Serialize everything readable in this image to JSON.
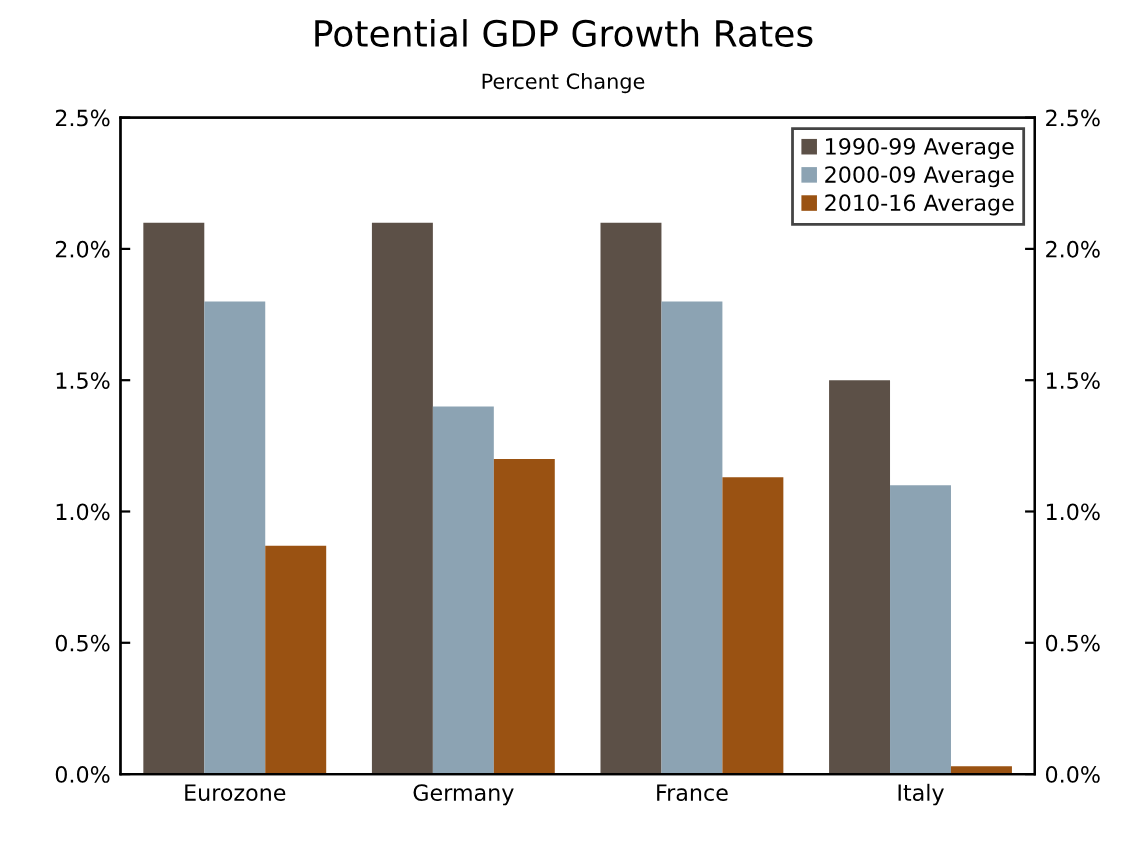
{
  "chart_data": {
    "type": "bar",
    "title": "Potential GDP Growth Rates",
    "subtitle": "Percent Change",
    "categories": [
      "Eurozone",
      "Germany",
      "France",
      "Italy"
    ],
    "series": [
      {
        "name": "1990-99 Average",
        "color": "#5c5047",
        "values": [
          2.1,
          2.1,
          2.1,
          1.5
        ]
      },
      {
        "name": "2000-09 Average",
        "color": "#8ca3b3",
        "values": [
          1.8,
          1.4,
          1.8,
          1.1
        ]
      },
      {
        "name": "2010-16 Average",
        "color": "#9a5212",
        "values": [
          0.87,
          1.2,
          1.13,
          0.03
        ]
      }
    ],
    "ylim": [
      0,
      2.5
    ],
    "yticks": [
      {
        "value": 0,
        "label": "0.0%"
      },
      {
        "value": 0.5,
        "label": "0.5%"
      },
      {
        "value": 1,
        "label": "1.0%"
      },
      {
        "value": 1.5,
        "label": "1.5%"
      },
      {
        "value": 2,
        "label": "2.0%"
      },
      {
        "value": 2.5,
        "label": "2.5%"
      }
    ],
    "y2lim": [
      0,
      2.5
    ],
    "y2ticks": [
      {
        "value": 0,
        "label": "0.0%"
      },
      {
        "value": 0.5,
        "label": "0.5%"
      },
      {
        "value": 1,
        "label": "1.0%"
      },
      {
        "value": 1.5,
        "label": "1.5%"
      },
      {
        "value": 2,
        "label": "2.0%"
      },
      {
        "value": 2.5,
        "label": "2.5%"
      }
    ],
    "legend": "top right",
    "grid": false
  }
}
